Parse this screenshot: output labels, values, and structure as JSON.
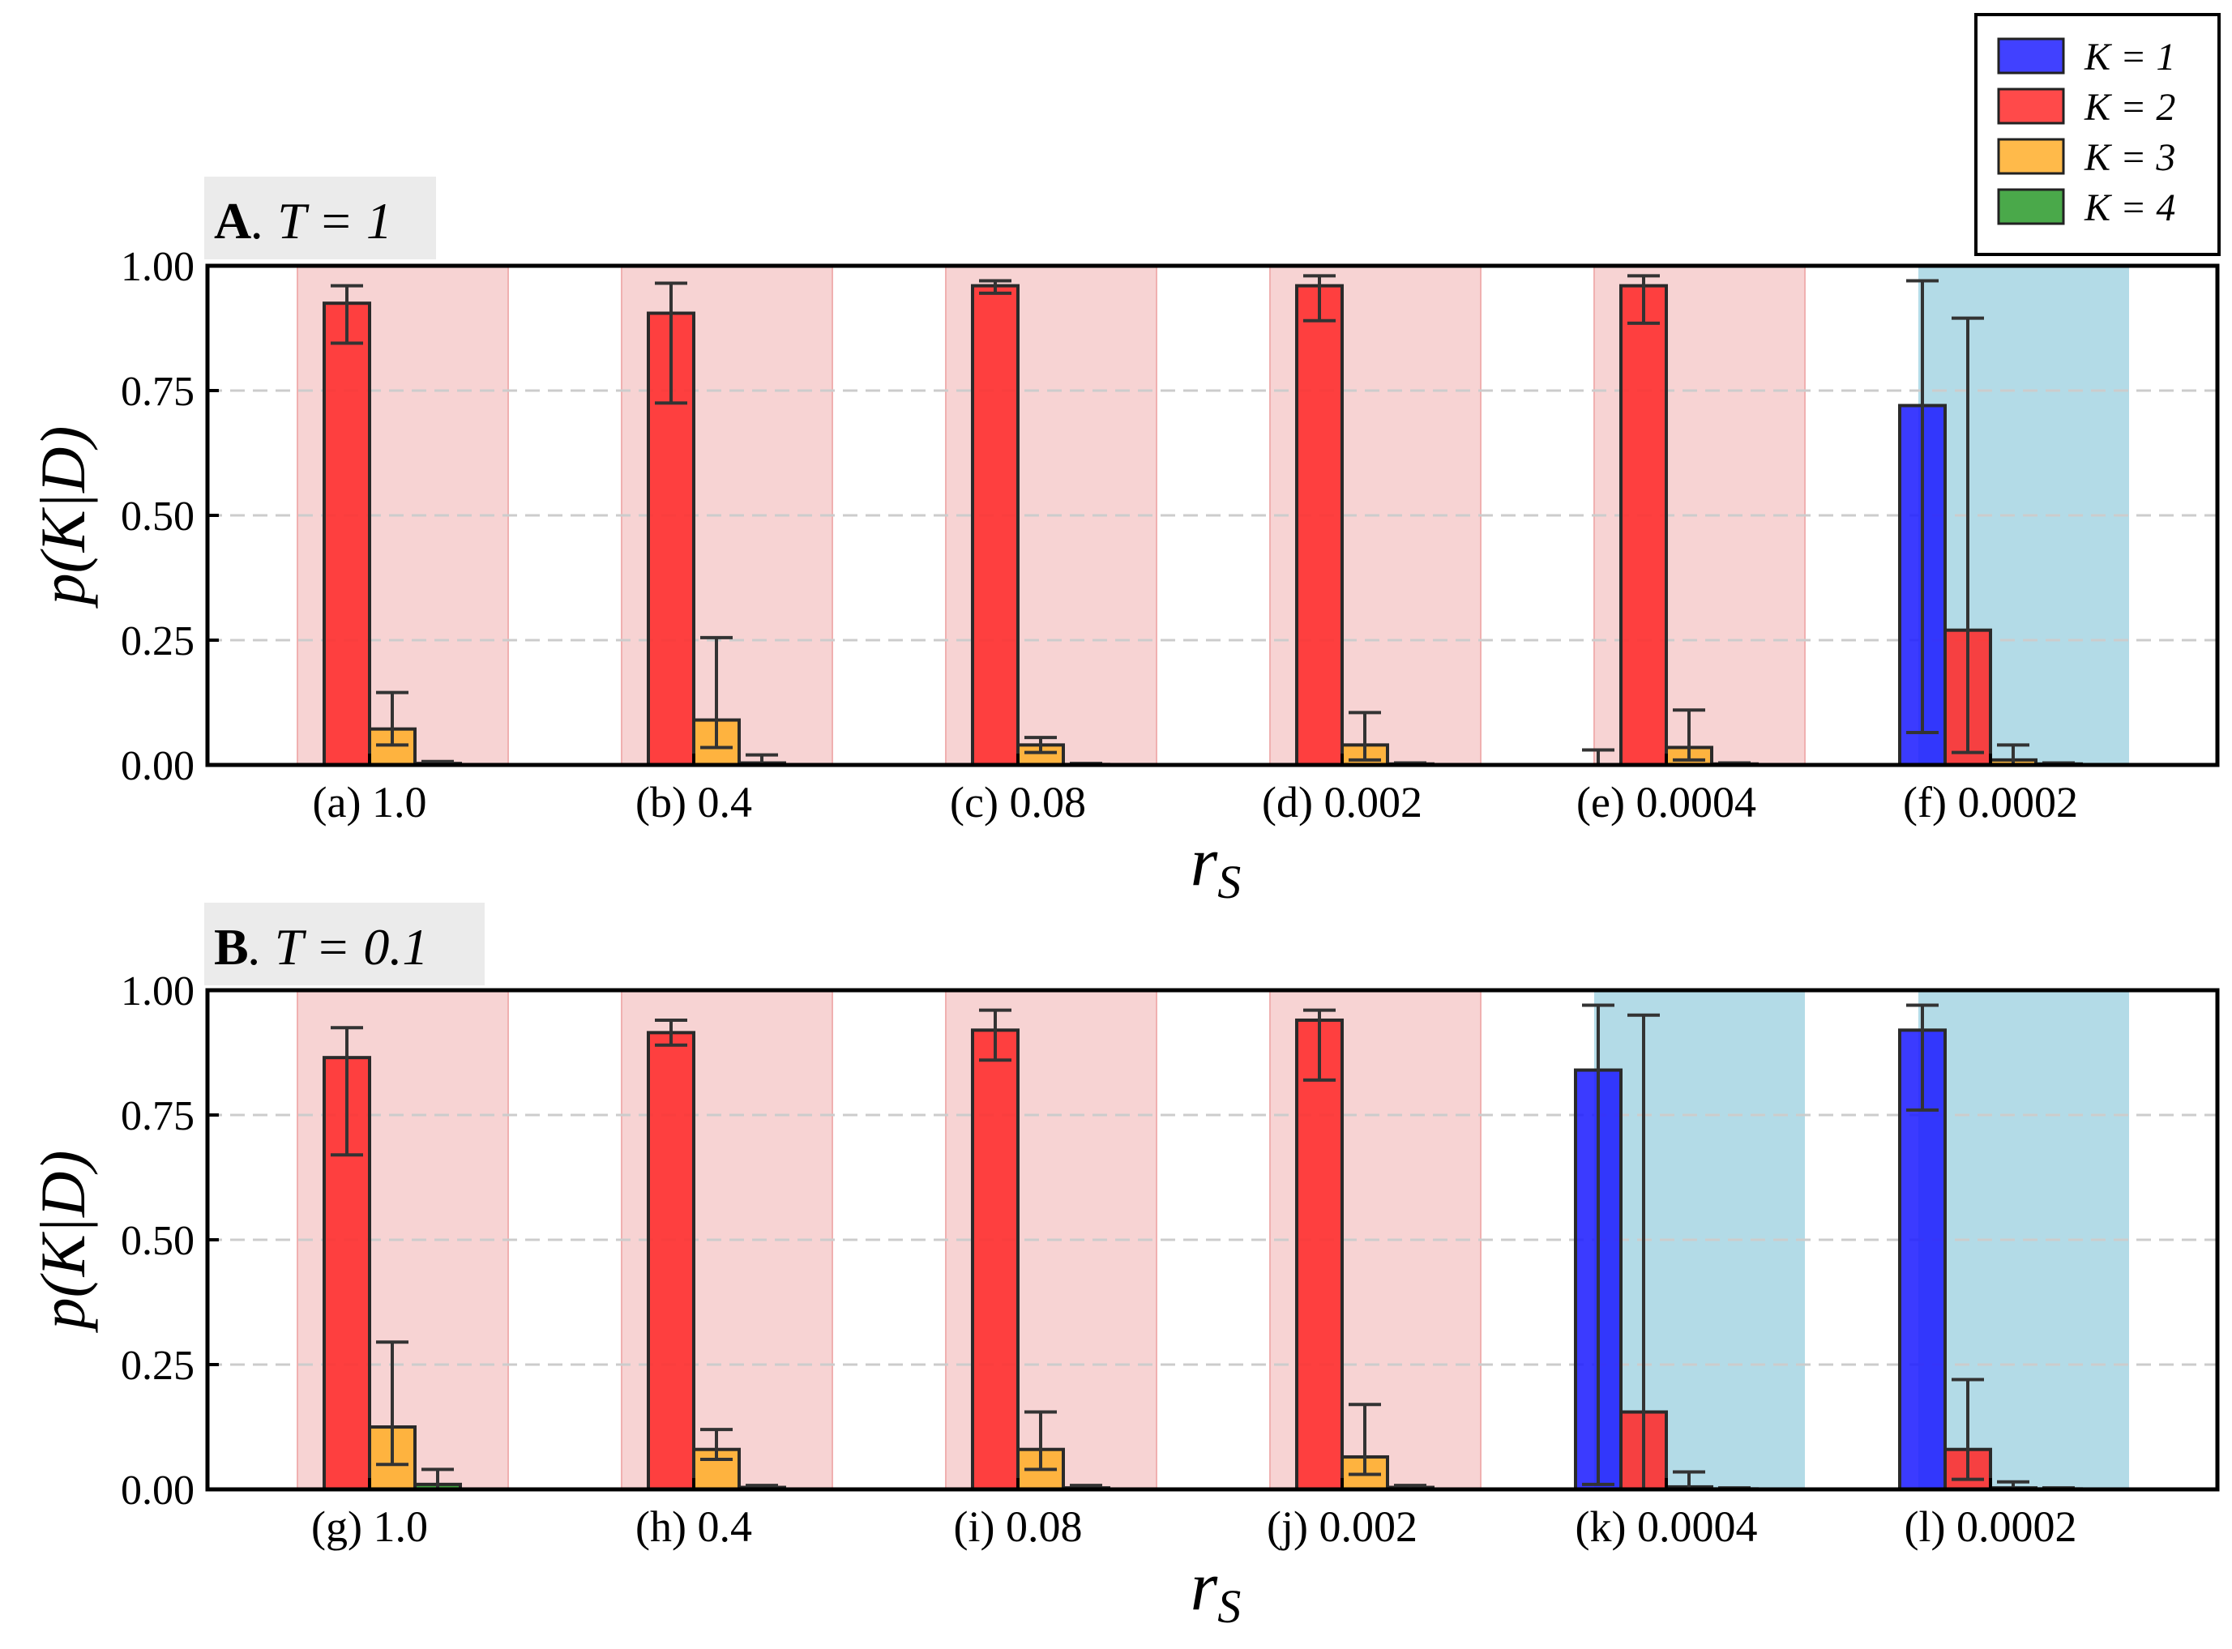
{
  "colors": {
    "k1": "#2020ff",
    "k2": "#ff2a2a",
    "k3": "#ffae2a",
    "k4": "#2a9a2a",
    "band_k2": "#f7d3d3",
    "band_k1": "#b3dbe7",
    "title_bg": "#ebebeb"
  },
  "legend": {
    "placement": "top-right",
    "entries": [
      {
        "label": "K = 1",
        "color_key": "k1"
      },
      {
        "label": "K = 2",
        "color_key": "k2"
      },
      {
        "label": "K = 3",
        "color_key": "k3"
      },
      {
        "label": "K = 4",
        "color_key": "k4"
      }
    ]
  },
  "chart_data": [
    {
      "type": "bar",
      "title_bold": "A",
      "title_rest": ". T = 1",
      "ylabel": "p(K|D)",
      "xlabel": "r",
      "xlabel_sub": "S",
      "ylim": [
        0,
        1
      ],
      "yticks": [
        "0.00",
        "0.25",
        "0.50",
        "0.75",
        "1.00"
      ],
      "grid": "horizontal dashed",
      "categories": [
        "(a) 1.0",
        "(b) 0.4",
        "(c) 0.08",
        "(d) 0.002",
        "(e) 0.0004",
        "(f) 0.0002"
      ],
      "highlight": [
        "k2",
        "k2",
        "k2",
        "k2",
        "k2",
        "k1"
      ],
      "series": [
        {
          "name": "K = 1",
          "values": [
            0.0,
            0.0,
            0.0,
            0.0,
            0.0,
            0.72
          ],
          "err_low": [
            0.0,
            0.0,
            0.0,
            0.0,
            0.0,
            0.065
          ],
          "err_high": [
            0.0,
            0.0,
            0.0,
            0.0,
            0.03,
            0.97
          ]
        },
        {
          "name": "K = 2",
          "values": [
            0.925,
            0.905,
            0.96,
            0.96,
            0.96,
            0.27
          ],
          "err_low": [
            0.845,
            0.725,
            0.945,
            0.89,
            0.885,
            0.025
          ],
          "err_high": [
            0.96,
            0.965,
            0.97,
            0.98,
            0.98,
            0.895
          ]
        },
        {
          "name": "K = 3",
          "values": [
            0.072,
            0.09,
            0.04,
            0.04,
            0.035,
            0.01
          ],
          "err_low": [
            0.04,
            0.035,
            0.025,
            0.01,
            0.01,
            0.0
          ],
          "err_high": [
            0.145,
            0.255,
            0.055,
            0.105,
            0.11,
            0.04
          ]
        },
        {
          "name": "K = 4",
          "values": [
            0.003,
            0.004,
            0.001,
            0.002,
            0.002,
            0.002
          ],
          "err_low": [
            0.0,
            0.0,
            0.0,
            0.0,
            0.0,
            0.0
          ],
          "err_high": [
            0.007,
            0.02,
            0.003,
            0.004,
            0.004,
            0.004
          ]
        }
      ]
    },
    {
      "type": "bar",
      "title_bold": "B",
      "title_rest": ". T = 0.1",
      "ylabel": "p(K|D)",
      "xlabel": "r",
      "xlabel_sub": "S",
      "ylim": [
        0,
        1
      ],
      "yticks": [
        "0.00",
        "0.25",
        "0.50",
        "0.75",
        "1.00"
      ],
      "grid": "horizontal dashed",
      "categories": [
        "(g) 1.0",
        "(h) 0.4",
        "(i) 0.08",
        "(j) 0.002",
        "(k) 0.0004",
        "(l) 0.0002"
      ],
      "highlight": [
        "k2",
        "k2",
        "k2",
        "k2",
        "k1",
        "k1"
      ],
      "series": [
        {
          "name": "K = 1",
          "values": [
            0.0,
            0.0,
            0.0,
            0.0,
            0.84,
            0.92
          ],
          "err_low": [
            0.0,
            0.0,
            0.0,
            0.0,
            0.01,
            0.76
          ],
          "err_high": [
            0.0,
            0.0,
            0.0,
            0.0,
            0.97,
            0.97
          ]
        },
        {
          "name": "K = 2",
          "values": [
            0.865,
            0.915,
            0.92,
            0.94,
            0.155,
            0.08
          ],
          "err_low": [
            0.67,
            0.89,
            0.86,
            0.82,
            0.0,
            0.02
          ],
          "err_high": [
            0.925,
            0.94,
            0.96,
            0.96,
            0.95,
            0.22
          ]
        },
        {
          "name": "K = 3",
          "values": [
            0.125,
            0.08,
            0.08,
            0.065,
            0.005,
            0.003
          ],
          "err_low": [
            0.05,
            0.06,
            0.04,
            0.03,
            0.0,
            0.0
          ],
          "err_high": [
            0.295,
            0.12,
            0.155,
            0.17,
            0.035,
            0.015
          ]
        },
        {
          "name": "K = 4",
          "values": [
            0.01,
            0.004,
            0.003,
            0.004,
            0.001,
            0.001
          ],
          "err_low": [
            0.0,
            0.0,
            0.0,
            0.0,
            0.0,
            0.0
          ],
          "err_high": [
            0.04,
            0.008,
            0.008,
            0.008,
            0.003,
            0.003
          ]
        }
      ]
    }
  ]
}
